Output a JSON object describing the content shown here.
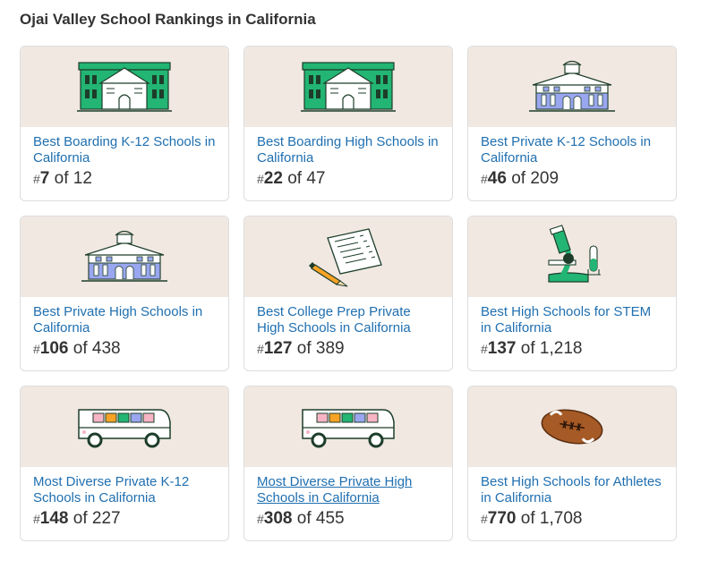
{
  "section_title": "Ojai Valley School Rankings in California",
  "colors": {
    "link": "#1f6fb0",
    "card_art_bg": "#f1e8e2",
    "green": "#22b573",
    "periwinkle": "#9aa6ef",
    "dark": "#1d3d2a"
  },
  "cards": [
    {
      "icon": "school-building-green-icon",
      "label": "Best Boarding K-12 Schools in California",
      "hash": "#",
      "rank": "7",
      "of_text": " of 12"
    },
    {
      "icon": "school-building-green-icon",
      "label": "Best Boarding High Schools in California",
      "hash": "#",
      "rank": "22",
      "of_text": " of 47"
    },
    {
      "icon": "school-building-purple-icon",
      "label": "Best Private K-12 Schools in California",
      "hash": "#",
      "rank": "46",
      "of_text": " of 209"
    },
    {
      "icon": "school-building-purple-icon",
      "label": "Best Private High Schools in California",
      "hash": "#",
      "rank": "106",
      "of_text": " of 438"
    },
    {
      "icon": "test-paper-pencil-icon",
      "label": "Best College Prep Private High Schools in California",
      "hash": "#",
      "rank": "127",
      "of_text": " of 389"
    },
    {
      "icon": "microscope-icon",
      "label": "Best High Schools for STEM in California",
      "hash": "#",
      "rank": "137",
      "of_text": " of 1,218"
    },
    {
      "icon": "school-bus-icon",
      "label": "Most Diverse Private K-12 Schools in California",
      "hash": "#",
      "rank": "148",
      "of_text": " of 227"
    },
    {
      "icon": "school-bus-icon",
      "label": "Most Diverse Private High Schools in California",
      "hash": "#",
      "rank": "308",
      "of_text": " of 455"
    },
    {
      "icon": "football-icon",
      "label": "Best High Schools for Athletes in California",
      "hash": "#",
      "rank": "770",
      "of_text": " of 1,708"
    }
  ]
}
